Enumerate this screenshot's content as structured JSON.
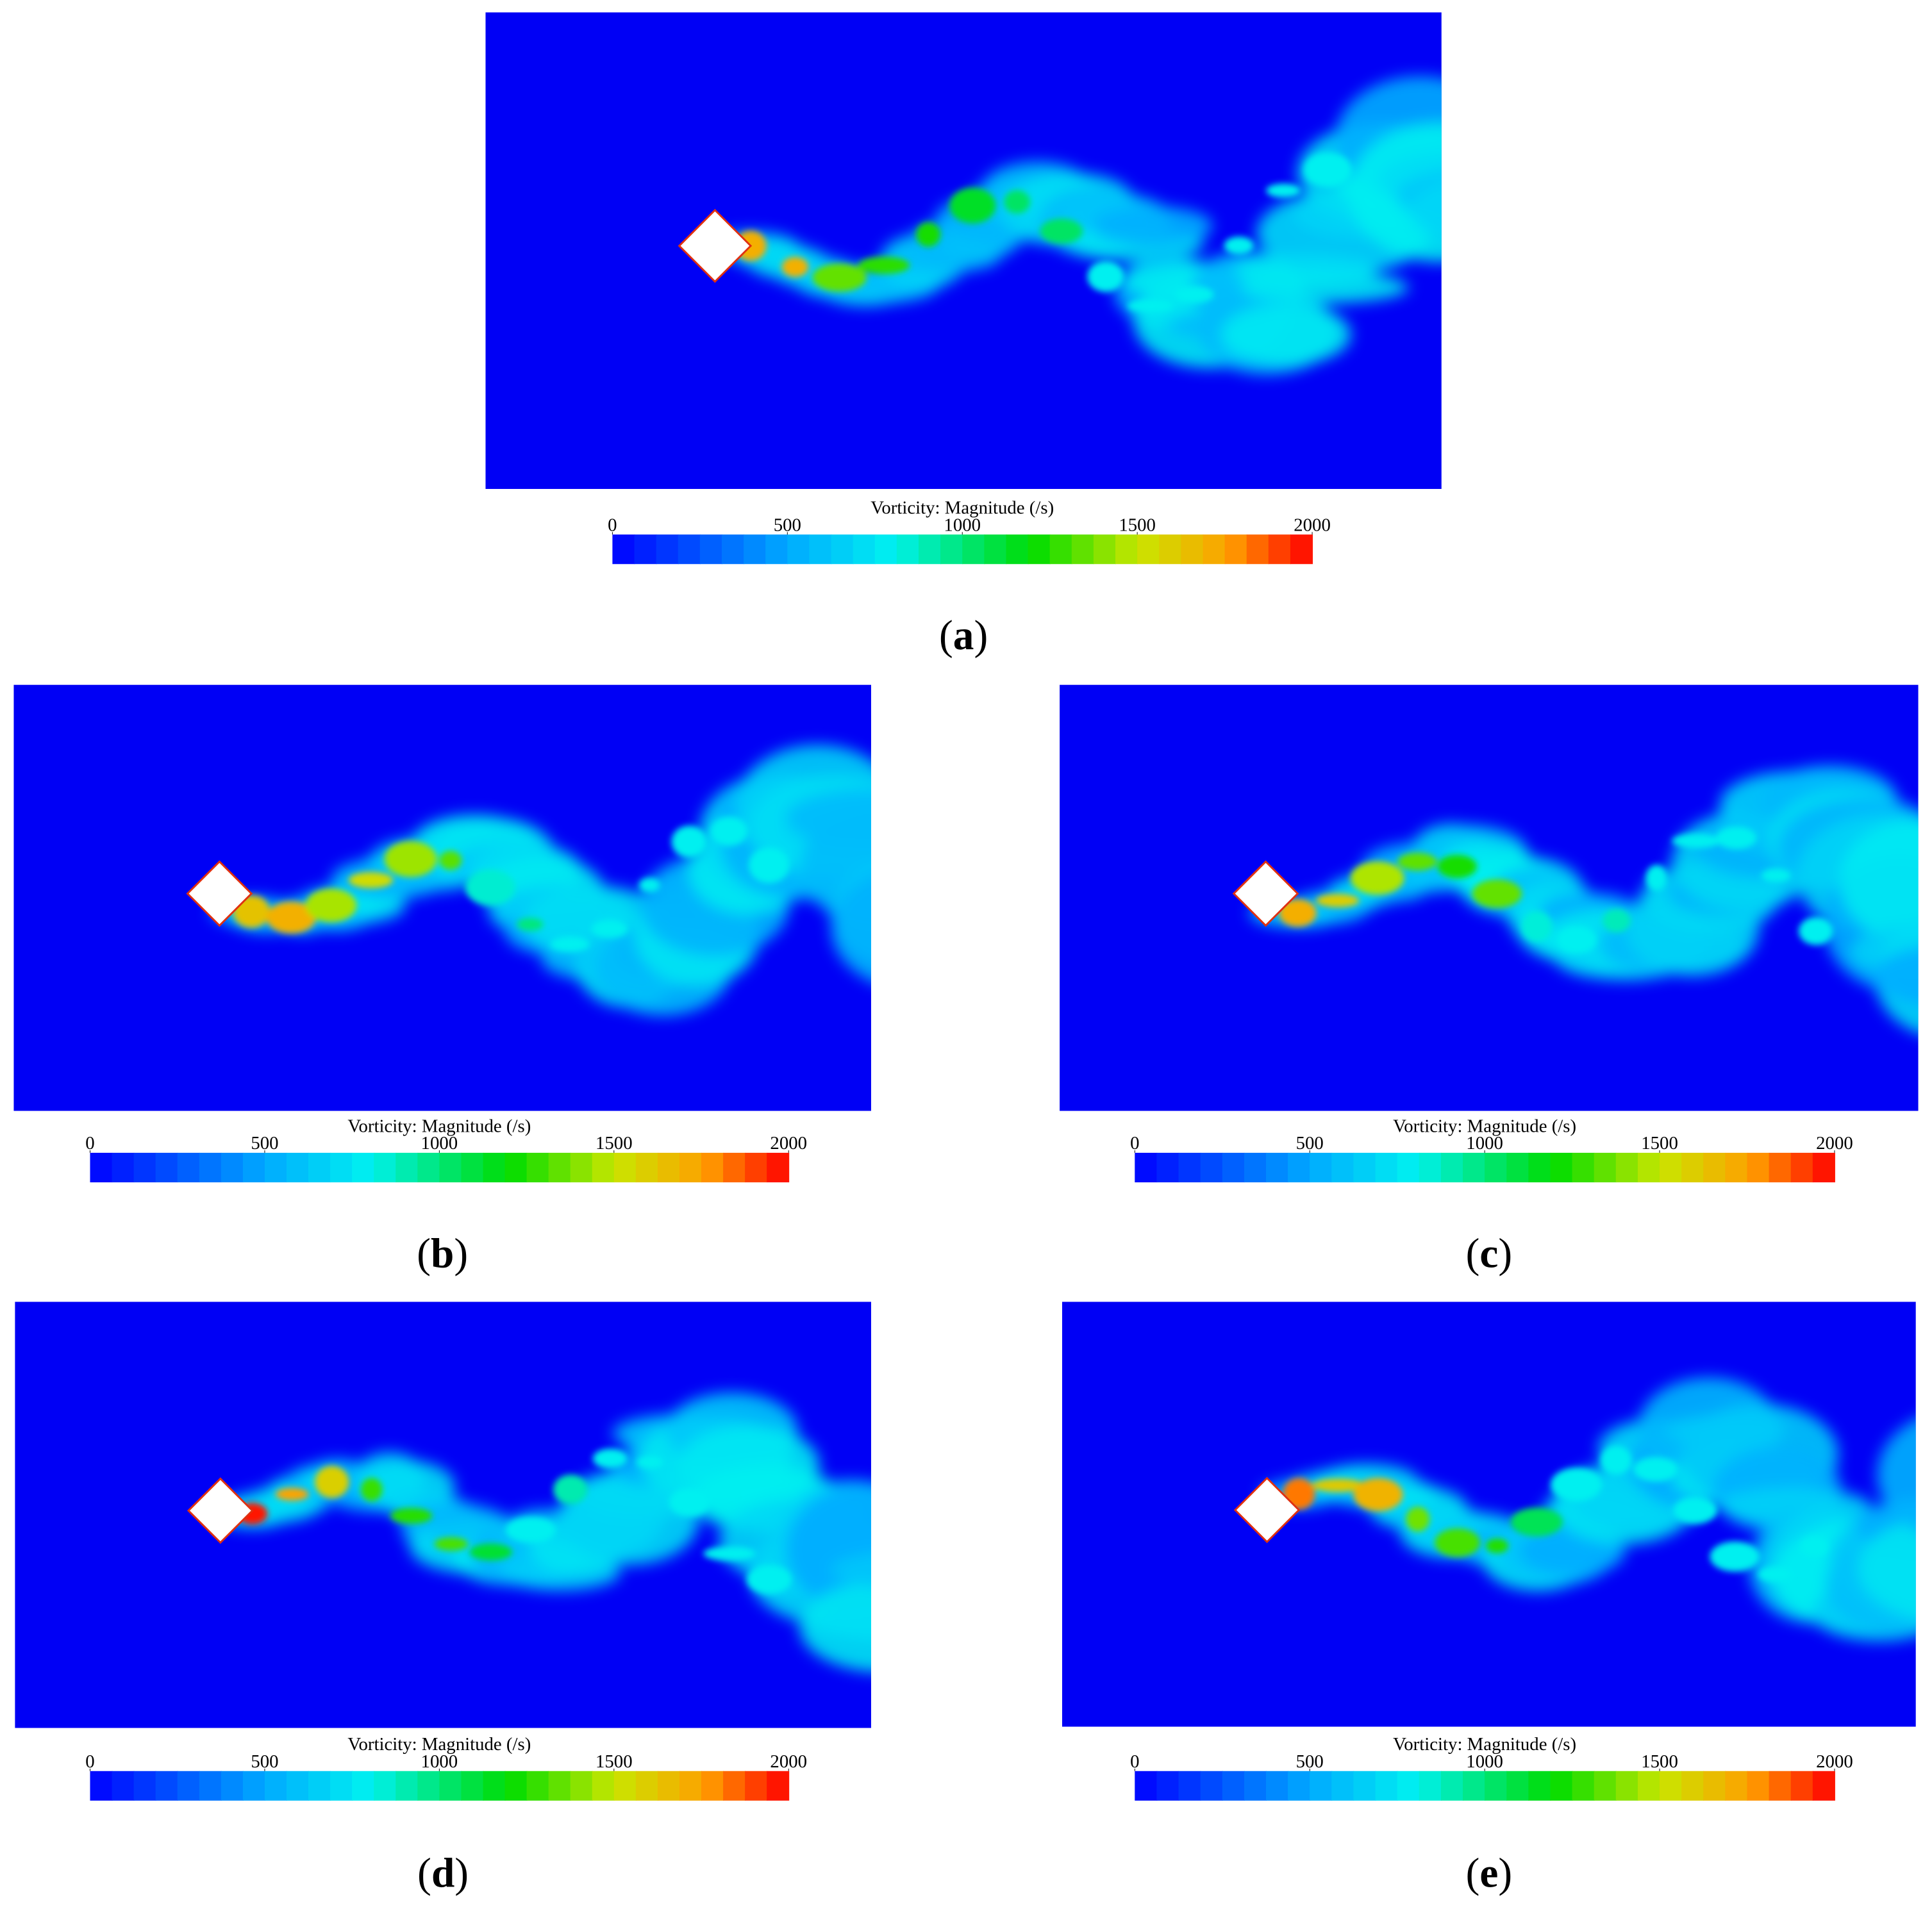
{
  "figure": {
    "panels": [
      {
        "caption": {
          "open": "(",
          "label": "a",
          "close": ")"
        },
        "colorbar": {
          "title": "Vorticity: Magnitude (/s)",
          "lim": [
            0,
            2000
          ],
          "ticks": [
            0,
            500,
            1000,
            1500,
            2000
          ]
        }
      },
      {
        "caption": {
          "open": "(",
          "label": "b",
          "close": ")"
        },
        "colorbar": {
          "title": "Vorticity: Magnitude (/s)",
          "lim": [
            0,
            2000
          ],
          "ticks": [
            0,
            500,
            1000,
            1500,
            2000
          ]
        }
      },
      {
        "caption": {
          "open": "(",
          "label": "c",
          "close": ")"
        },
        "colorbar": {
          "title": "Vorticity: Magnitude (/s)",
          "lim": [
            0,
            2000
          ],
          "ticks": [
            0,
            500,
            1000,
            1500,
            2000
          ]
        }
      },
      {
        "caption": {
          "open": "(",
          "label": "d",
          "close": ")"
        },
        "colorbar": {
          "title": "Vorticity: Magnitude (/s)",
          "lim": [
            0,
            2000
          ],
          "ticks": [
            0,
            500,
            1000,
            1500,
            2000
          ]
        }
      },
      {
        "caption": {
          "open": "(",
          "label": "e",
          "close": ")"
        },
        "colorbar": {
          "title": "Vorticity: Magnitude (/s)",
          "lim": [
            0,
            2000
          ],
          "ticks": [
            0,
            500,
            1000,
            1500,
            2000
          ]
        }
      }
    ]
  }
}
